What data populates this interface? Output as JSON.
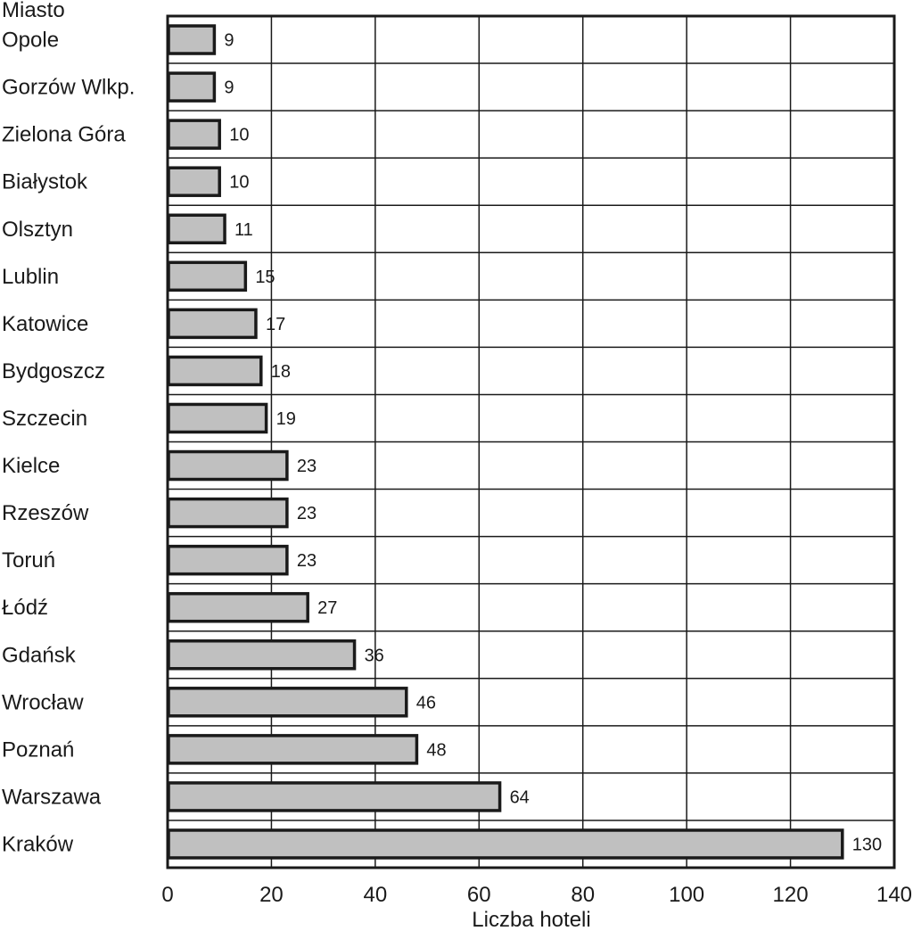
{
  "chart_data": {
    "type": "bar",
    "orientation": "horizontal",
    "title": "",
    "ylabel": "Miasto",
    "xlabel": "Liczba hoteli",
    "xlim": [
      0,
      140
    ],
    "x_ticks": [
      0,
      20,
      40,
      60,
      80,
      100,
      120,
      140
    ],
    "grid": true,
    "bar_color": "#c0c0c0",
    "outline_color": "#1a1a1a",
    "categories": [
      "Opole",
      "Gorzów Wlkp.",
      "Zielona Góra",
      "Białystok",
      "Olsztyn",
      "Lublin",
      "Katowice",
      "Bydgoszcz",
      "Szczecin",
      "Kielce",
      "Rzeszów",
      "Toruń",
      "Łódź",
      "Gdańsk",
      "Wrocław",
      "Poznań",
      "Warszawa",
      "Kraków"
    ],
    "values": [
      9,
      9,
      10,
      10,
      11,
      15,
      17,
      18,
      19,
      23,
      23,
      23,
      27,
      36,
      46,
      48,
      64,
      130
    ]
  }
}
